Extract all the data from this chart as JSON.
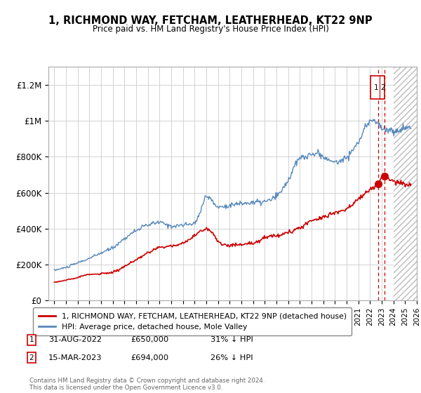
{
  "title": "1, RICHMOND WAY, FETCHAM, LEATHERHEAD, KT22 9NP",
  "subtitle": "Price paid vs. HM Land Registry's House Price Index (HPI)",
  "ylabel_ticks": [
    "£0",
    "£200K",
    "£400K",
    "£600K",
    "£800K",
    "£1M",
    "£1.2M"
  ],
  "ytick_values": [
    0,
    200000,
    400000,
    600000,
    800000,
    1000000,
    1200000
  ],
  "ylim": [
    0,
    1300000
  ],
  "xlim_start": 1994.5,
  "xlim_end": 2026,
  "legend_line1": "1, RICHMOND WAY, FETCHAM, LEATHERHEAD, KT22 9NP (detached house)",
  "legend_line2": "HPI: Average price, detached house, Mole Valley",
  "sale1_date": "31-AUG-2022",
  "sale1_price": "£650,000",
  "sale1_pct": "31% ↓ HPI",
  "sale2_date": "15-MAR-2023",
  "sale2_price": "£694,000",
  "sale2_pct": "26% ↓ HPI",
  "footer": "Contains HM Land Registry data © Crown copyright and database right 2024.\nThis data is licensed under the Open Government Licence v3.0.",
  "line_red": "#cc0000",
  "line_blue": "#5588bb",
  "background_chart": "#ffffff",
  "grid_color": "#cccccc",
  "sale1_x": 2022.67,
  "sale2_x": 2023.21,
  "sale1_y": 650000,
  "sale2_y": 694000,
  "hatch_start": 2024.0
}
